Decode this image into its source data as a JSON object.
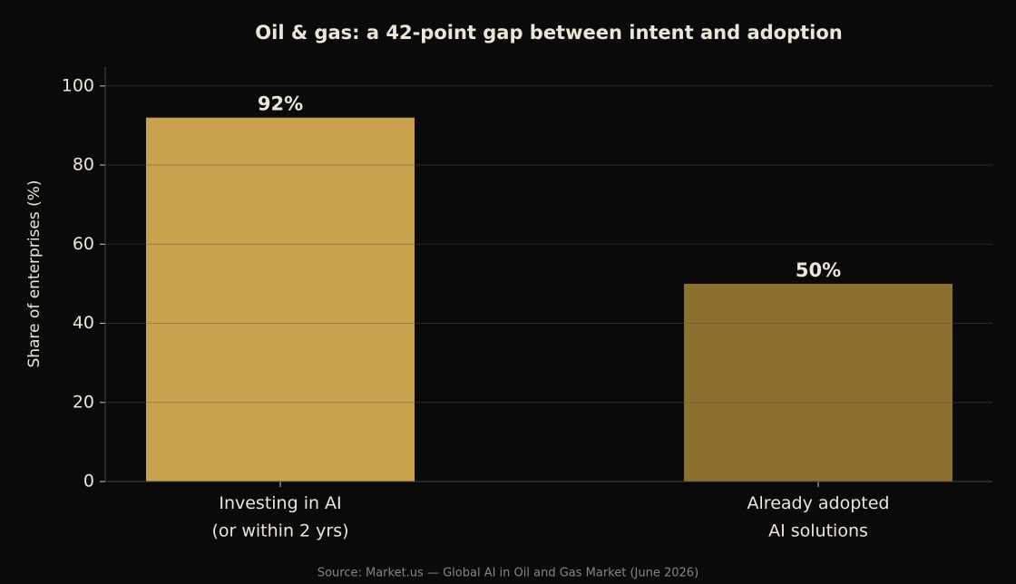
{
  "chart_data": {
    "type": "bar",
    "title": "Oil & gas: a 42-point gap between intent and adoption",
    "ylabel": "Share of enterprises (%)",
    "source": "Source: Market.us — Global AI in Oil and Gas Market (June 2026)",
    "categories": [
      "Investing in AI\n(or within 2 yrs)",
      "Already adopted\nAI solutions"
    ],
    "values": [
      92,
      50
    ],
    "value_labels": [
      "92%",
      "50%"
    ],
    "colors": [
      "#c9a24d",
      "#8b7030"
    ],
    "ylim": [
      0,
      105
    ],
    "yticks": [
      0,
      20,
      40,
      60,
      80,
      100
    ],
    "grid": true
  }
}
